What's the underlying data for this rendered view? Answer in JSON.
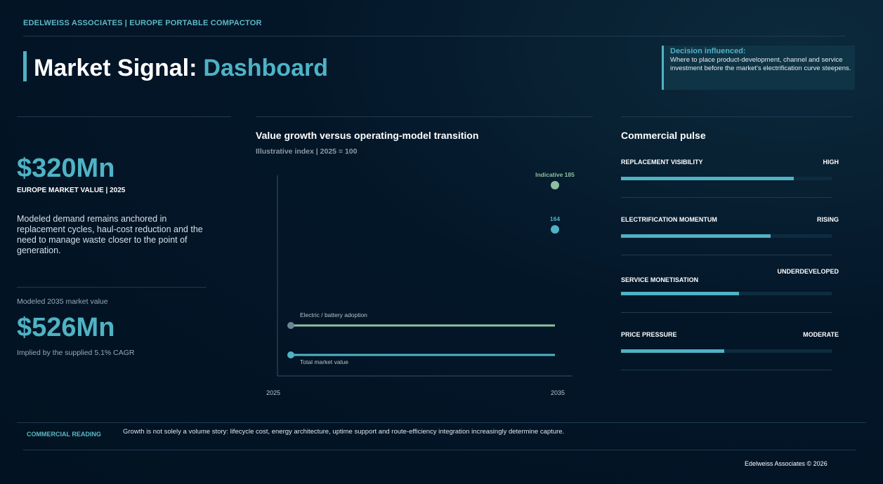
{
  "header": {
    "brand": "EDELWEISS ASSOCIATES | EUROPE PORTABLE COMPACTOR",
    "title_main": "Market Signal:",
    "title_accent": "Dashboard",
    "decision_label": "Decision influenced:",
    "decision_text": "Where to place product-development, channel and service investment before the market's electrification curve steepens."
  },
  "left": {
    "value": "$320Mn",
    "value_label": "EUROPE MARKET VALUE | 2025",
    "description": "Modeled demand remains anchored in replacement cycles, haul-cost reduction and the need to manage waste closer to the point of generation.",
    "future_label": "Modeled 2035 market value",
    "future_value": "$526Mn",
    "future_note": "Implied by the supplied 5.1% CAGR"
  },
  "chart": {
    "title": "Value growth versus operating-model transition",
    "subtitle": "Illustrative index | 2025 = 100",
    "x_start": "2025",
    "x_end": "2035",
    "series": [
      {
        "name": "Electric / battery adoption",
        "color": "#8fbf9f",
        "end_value": 185,
        "end_label": "Indicative 185"
      },
      {
        "name": "Total market value",
        "color": "#4fb3c4",
        "end_value": 164,
        "end_label": "164"
      }
    ]
  },
  "pulse": {
    "title": "Commercial pulse",
    "items": [
      {
        "label": "REPLACEMENT VISIBILITY",
        "status": "HIGH",
        "level": 82
      },
      {
        "label": "ELECTRIFICATION MOMENTUM",
        "status": "RISING",
        "level": 71
      },
      {
        "label": "SERVICE MONETISATION",
        "status": "UNDERDEVELOPED",
        "level": 56
      },
      {
        "label": "PRICE PRESSURE",
        "status": "MODERATE",
        "level": 49
      }
    ]
  },
  "footer": {
    "reading_label": "COMMERCIAL READING",
    "reading_text": "Growth is not solely a volume story: lifecycle cost, energy architecture, uptime support and route-efficiency integration increasingly determine capture.",
    "copyright": "Edelweiss Associates © 2026"
  }
}
